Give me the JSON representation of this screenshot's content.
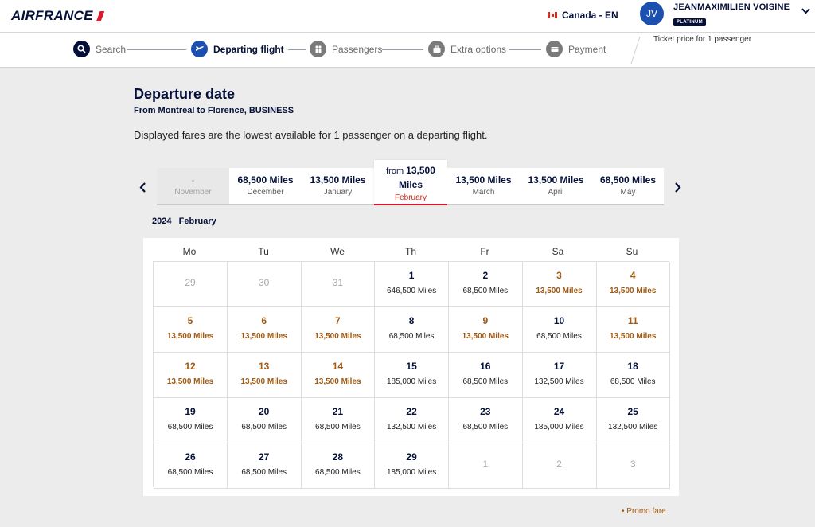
{
  "header": {
    "logo": "AIRFRANCE",
    "country": "Canada - EN",
    "user_initials": "JV",
    "user_name": "JEANMAXIMILIEN VOISINE",
    "tier": "PLATINUM"
  },
  "stepper": {
    "steps": [
      "Search",
      "Departing flight",
      "Passengers",
      "Extra options",
      "Payment"
    ],
    "price_note": "Ticket price for 1 passenger"
  },
  "page": {
    "title": "Departure date",
    "subtitle": "From Montreal to Florence, BUSINESS",
    "description": "Displayed fares are the lowest available for 1 passenger on a departing flight."
  },
  "months": [
    {
      "value": "-",
      "name": "November"
    },
    {
      "value": "68,500 Miles",
      "name": "December"
    },
    {
      "value": "13,500 Miles",
      "name": "January"
    },
    {
      "from": "from",
      "value": "13,500",
      "unit": "Miles",
      "name": "February"
    },
    {
      "value": "13,500 Miles",
      "name": "March"
    },
    {
      "value": "13,500 Miles",
      "name": "April"
    },
    {
      "value": "68,500 Miles",
      "name": "May"
    }
  ],
  "calendar": {
    "year": "2024",
    "month": "February",
    "weekdays": [
      "Mo",
      "Tu",
      "We",
      "Th",
      "Fr",
      "Sa",
      "Su"
    ],
    "cells": [
      {
        "d": "29",
        "p": ""
      },
      {
        "d": "30",
        "p": ""
      },
      {
        "d": "31",
        "p": ""
      },
      {
        "d": "1",
        "p": "646,500 Miles"
      },
      {
        "d": "2",
        "p": "68,500 Miles"
      },
      {
        "d": "3",
        "p": "13,500 Miles"
      },
      {
        "d": "4",
        "p": "13,500 Miles"
      },
      {
        "d": "5",
        "p": "13,500 Miles"
      },
      {
        "d": "6",
        "p": "13,500 Miles"
      },
      {
        "d": "7",
        "p": "13,500 Miles"
      },
      {
        "d": "8",
        "p": "68,500 Miles"
      },
      {
        "d": "9",
        "p": "13,500 Miles"
      },
      {
        "d": "10",
        "p": "68,500 Miles"
      },
      {
        "d": "11",
        "p": "13,500 Miles"
      },
      {
        "d": "12",
        "p": "13,500 Miles"
      },
      {
        "d": "13",
        "p": "13,500 Miles"
      },
      {
        "d": "14",
        "p": "13,500 Miles"
      },
      {
        "d": "15",
        "p": "185,000 Miles"
      },
      {
        "d": "16",
        "p": "68,500 Miles"
      },
      {
        "d": "17",
        "p": "132,500 Miles"
      },
      {
        "d": "18",
        "p": "68,500 Miles"
      },
      {
        "d": "19",
        "p": "68,500 Miles"
      },
      {
        "d": "20",
        "p": "68,500 Miles"
      },
      {
        "d": "21",
        "p": "68,500 Miles"
      },
      {
        "d": "22",
        "p": "132,500 Miles"
      },
      {
        "d": "23",
        "p": "68,500 Miles"
      },
      {
        "d": "24",
        "p": "185,000 Miles"
      },
      {
        "d": "25",
        "p": "132,500 Miles"
      },
      {
        "d": "26",
        "p": "68,500 Miles"
      },
      {
        "d": "27",
        "p": "68,500 Miles"
      },
      {
        "d": "28",
        "p": "68,500 Miles"
      },
      {
        "d": "29",
        "p": "185,000 Miles"
      },
      {
        "d": "1",
        "p": ""
      },
      {
        "d": "2",
        "p": ""
      },
      {
        "d": "3",
        "p": ""
      }
    ]
  },
  "legend": {
    "promo": "• Promo fare"
  },
  "colors": {
    "navy": "#051039",
    "promo": "#a25a12",
    "accent_red": "#d1142b"
  }
}
